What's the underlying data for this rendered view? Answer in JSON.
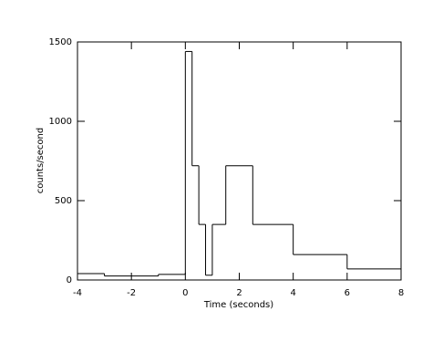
{
  "chart_data": {
    "type": "histogram",
    "x_label": "Time (seconds)",
    "y_label": "counts/second",
    "bins": [
      -4,
      -3,
      -1,
      0,
      0.25,
      0.5,
      0.75,
      1,
      1.5,
      2.5,
      4,
      6,
      8
    ],
    "values": [
      40,
      25,
      35,
      1440,
      720,
      350,
      30,
      350,
      720,
      350,
      160,
      70
    ],
    "color": "#000000",
    "xlim": [
      -4,
      8
    ],
    "xticks": [
      -4,
      -2,
      0,
      2,
      4,
      6,
      8
    ],
    "ylim": [
      0,
      1500
    ],
    "yticks": [
      0,
      500,
      1000,
      1500
    ]
  }
}
